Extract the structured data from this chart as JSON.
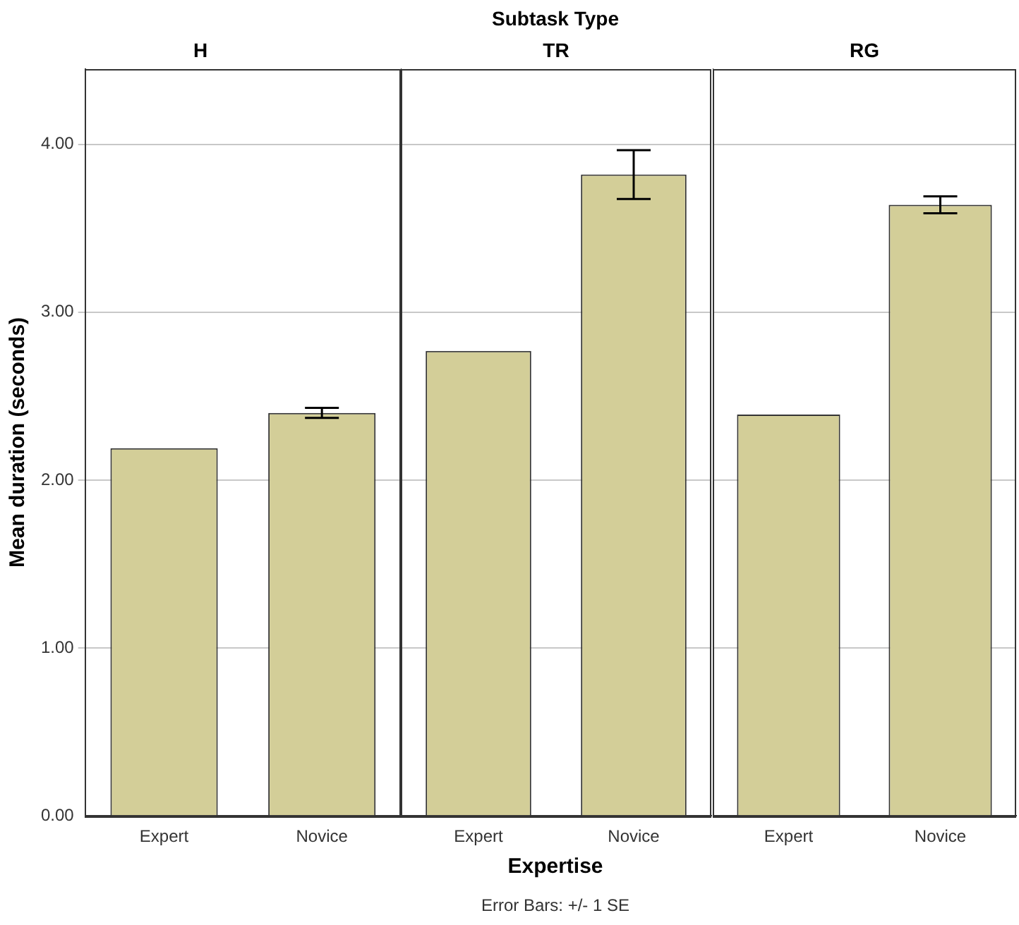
{
  "chart_data": [
    {
      "type": "bar",
      "title": "H",
      "annotations": [
        "Subtask Type"
      ],
      "ylabel": "Mean duration (seconds)",
      "categories": [
        "Expert",
        "Novice"
      ],
      "values": [
        2.19,
        2.4
      ],
      "errors": [
        null,
        0.03
      ],
      "color": "#d3ce98",
      "ylim": [
        0,
        4.45
      ],
      "yticks": [
        {
          "value": 0,
          "label": "0.00"
        },
        {
          "value": 1,
          "label": "1.00"
        },
        {
          "value": 2,
          "label": "2.00"
        },
        {
          "value": 3,
          "label": "3.00"
        },
        {
          "value": 4,
          "label": "4.00"
        }
      ],
      "grid": "y"
    },
    {
      "type": "bar",
      "title": "TR",
      "xlabel": "Expertise",
      "annotations": [
        "Error Bars: +/- 1 SE"
      ],
      "categories": [
        "Expert",
        "Novice"
      ],
      "values": [
        2.77,
        3.82
      ],
      "errors": [
        null,
        0.145
      ],
      "color": "#d3ce98",
      "ylim": [
        0,
        4.45
      ],
      "yticks": [
        0,
        1,
        2,
        3,
        4
      ],
      "grid": "y",
      "tick_labels": "x"
    },
    {
      "type": "bar",
      "title": "RG",
      "categories": [
        "Expert",
        "Novice"
      ],
      "values": [
        2.39,
        3.64
      ],
      "errors": [
        null,
        0.05
      ],
      "color": "#d3ce98",
      "ylim": [
        0,
        4.45
      ],
      "yticks": [
        0,
        1,
        2,
        3,
        4
      ],
      "grid": "y",
      "tick_labels": "x"
    }
  ]
}
